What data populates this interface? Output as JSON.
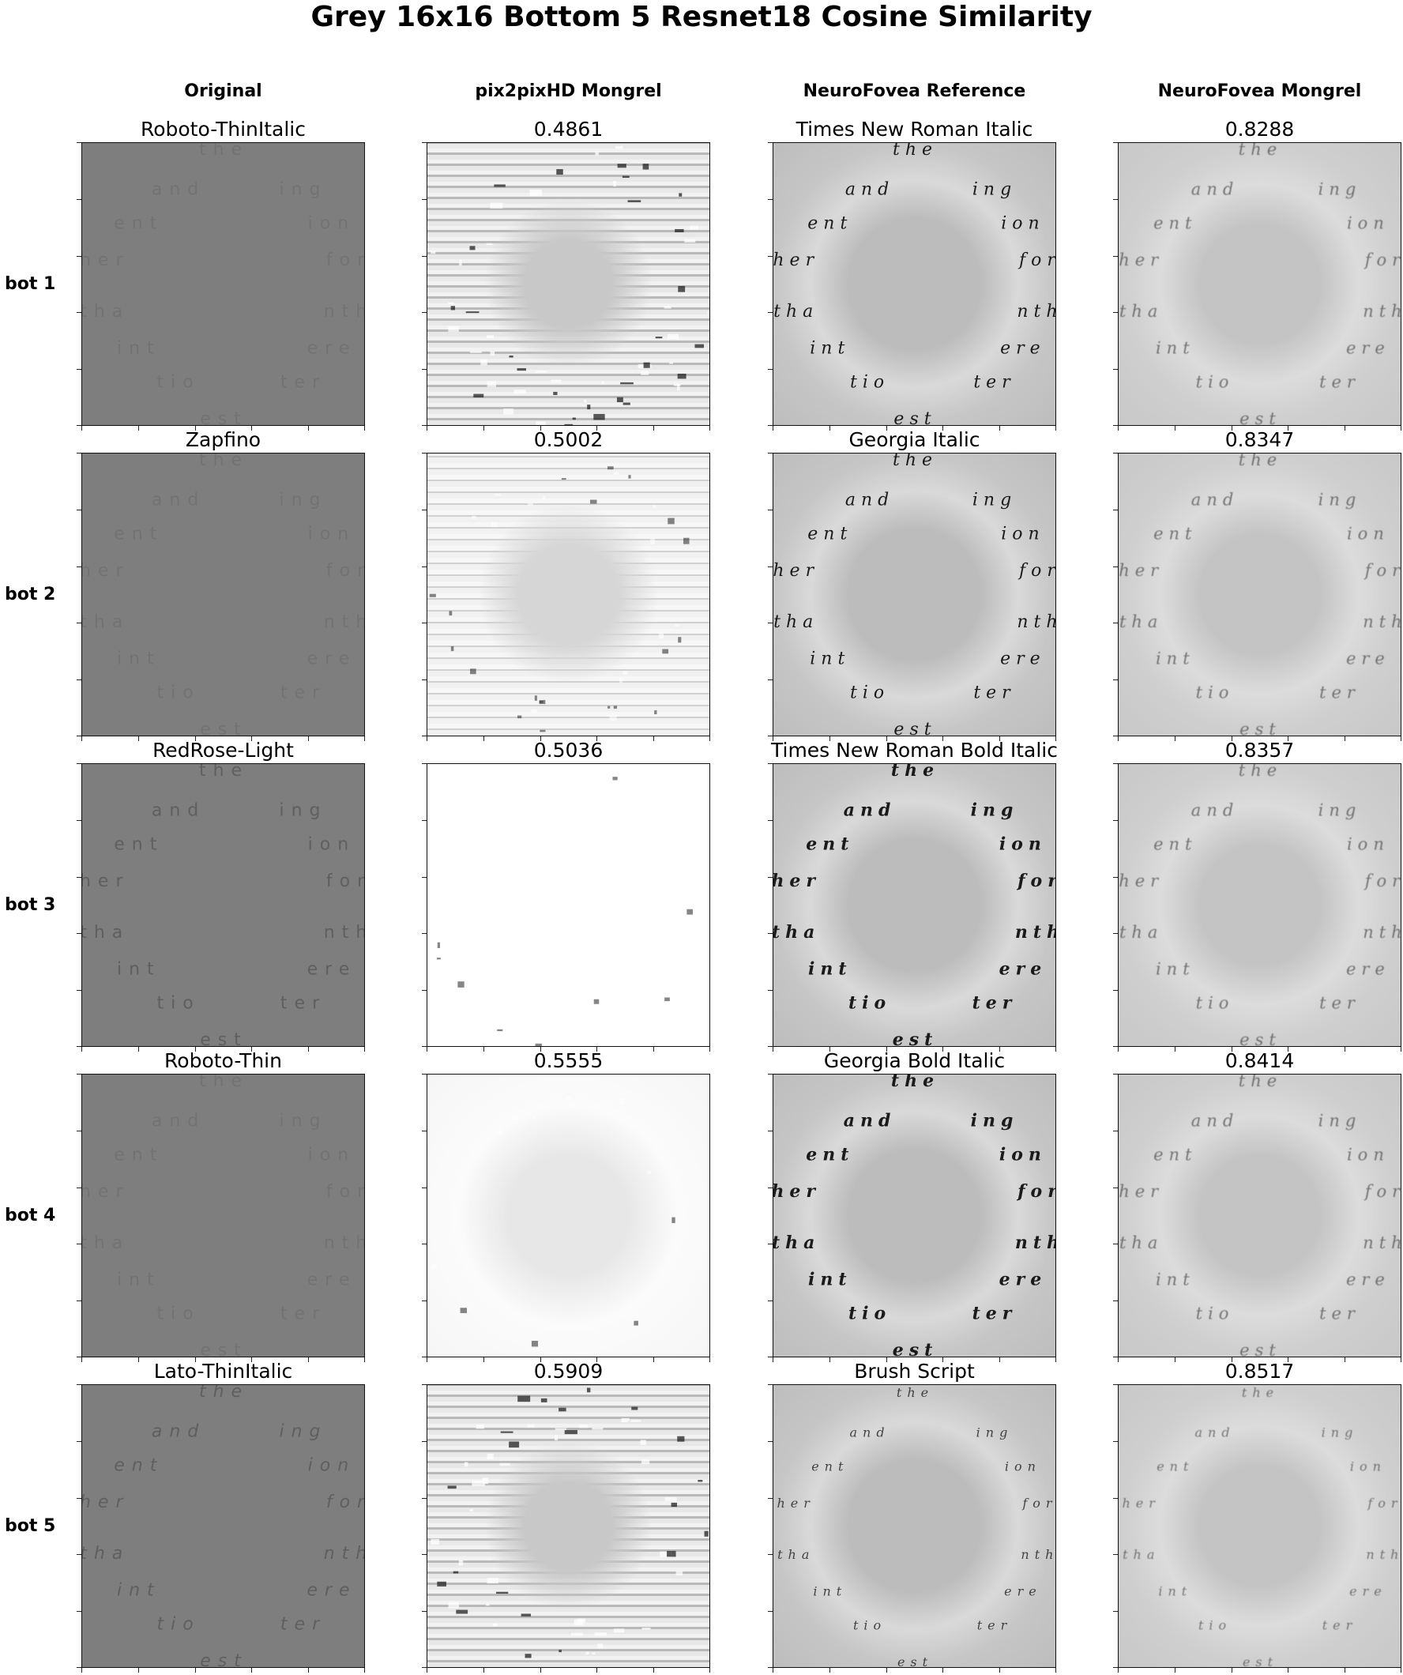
{
  "figure": {
    "title": "Grey 16x16 Bottom 5 Resnet18 Cosine Similarity",
    "columns": [
      "Original",
      "pix2pixHD Mongrel",
      "NeuroFovea Reference",
      "NeuroFovea Mongrel"
    ],
    "rows": [
      {
        "label": "bot 1",
        "original": "Roboto-ThinItalic",
        "pix2pix_score": "0.4861",
        "reference": "Times New Roman Italic",
        "mongrel_score": "0.8288"
      },
      {
        "label": "bot 2",
        "original": "Zapfino",
        "pix2pix_score": "0.5002",
        "reference": "Georgia Italic",
        "mongrel_score": "0.8347"
      },
      {
        "label": "bot 3",
        "original": "RedRose-Light",
        "pix2pix_score": "0.5036",
        "reference": "Times New Roman Bold Italic",
        "mongrel_score": "0.8357"
      },
      {
        "label": "bot 4",
        "original": "Roboto-Thin",
        "pix2pix_score": "0.5555",
        "reference": "Georgia Bold Italic",
        "mongrel_score": "0.8414"
      },
      {
        "label": "bot 5",
        "original": "Lato-ThinItalic",
        "pix2pix_score": "0.5909",
        "reference": "Brush Script",
        "mongrel_score": "0.8517"
      }
    ],
    "ring_words": [
      "the",
      "and",
      "ing",
      "ent",
      "ion",
      "her",
      "for",
      "tha",
      "nth",
      "int",
      "ere",
      "tio",
      "ter",
      "est"
    ]
  }
}
